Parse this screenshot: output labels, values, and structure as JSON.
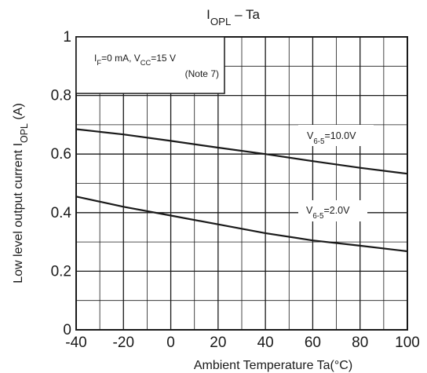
{
  "chart_data": {
    "type": "line",
    "title": {
      "main": "I",
      "sub": "OPL",
      "rest": " – Ta"
    },
    "xlabel": "Ambient Temperature Ta(°C)",
    "ylabel": {
      "main": "Low level output current   I",
      "sub": "OPL",
      "rest": "   (A)"
    },
    "xlim": [
      -40,
      100
    ],
    "ylim": [
      0,
      1
    ],
    "x_ticks": [
      -40,
      -20,
      0,
      20,
      40,
      60,
      80,
      100
    ],
    "y_ticks": [
      0,
      0.2,
      0.4,
      0.6,
      0.8,
      1
    ],
    "x_tick_labels": [
      "-40",
      "-20",
      "0",
      "20",
      "40",
      "60",
      "80",
      "100"
    ],
    "y_tick_labels": [
      "0",
      "0.2",
      "0.4",
      "0.6",
      "0.8",
      "1"
    ],
    "grid": true,
    "conditions": {
      "line1": {
        "pre": "I",
        "sub": "F",
        "mid": "=0 mA, V",
        "sub2": "CC",
        "post": "=15 V"
      },
      "line2": "(Note 7)"
    },
    "series": [
      {
        "name": {
          "main": "V",
          "sub": "6-5",
          "rest": "=10.0V"
        },
        "x": [
          -40,
          -20,
          0,
          20,
          40,
          60,
          80,
          100
        ],
        "y": [
          0.685,
          0.667,
          0.645,
          0.622,
          0.6,
          0.576,
          0.553,
          0.533
        ]
      },
      {
        "name": {
          "main": "V",
          "sub": "6-5",
          "rest": "=2.0V"
        },
        "x": [
          -40,
          -20,
          0,
          20,
          40,
          60,
          80,
          100
        ],
        "y": [
          0.455,
          0.42,
          0.39,
          0.36,
          0.33,
          0.305,
          0.287,
          0.268
        ]
      }
    ],
    "colors": {
      "line": "#1a1a1a",
      "grid": "#1a1a1a",
      "background": "#ffffff"
    }
  }
}
